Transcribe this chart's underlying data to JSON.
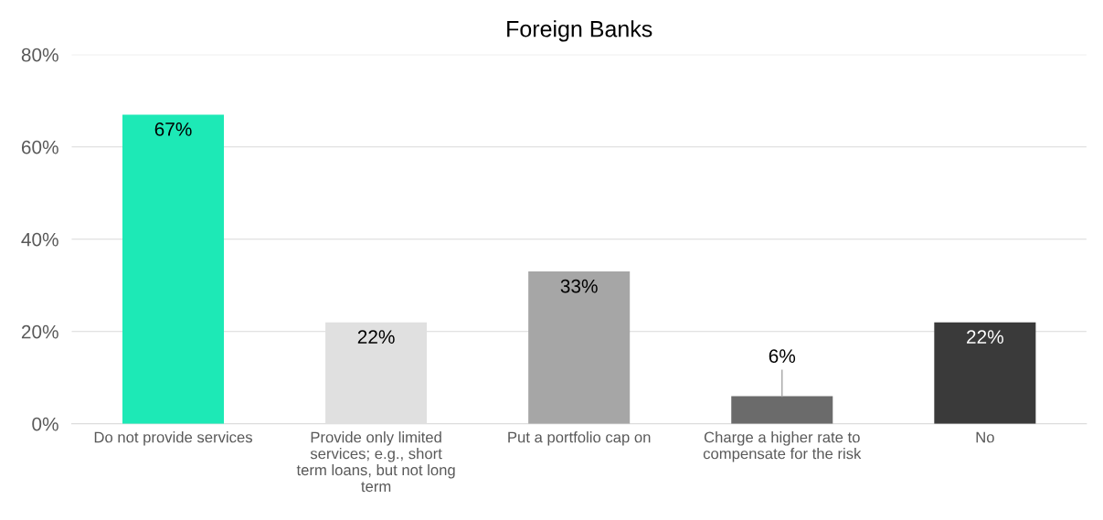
{
  "chart_data": {
    "type": "bar",
    "title": "Foreign Banks",
    "categories": [
      "Do not provide services",
      "Provide only limited services; e.g., short term loans, but not long term",
      "Put a portfolio cap on",
      "Charge a higher rate to compensate for the risk",
      "No"
    ],
    "values": [
      67,
      22,
      33,
      6,
      22
    ],
    "colors": [
      "#1de9b6",
      "#e0e0e0",
      "#a6a6a6",
      "#6b6b6b",
      "#3a3a3a"
    ],
    "value_labels": [
      "67%",
      "22%",
      "33%",
      "6%",
      "22%"
    ],
    "ylim": [
      0,
      80
    ],
    "yticks": [
      {
        "value": 0,
        "label": "0%"
      },
      {
        "value": 20,
        "label": "20%"
      },
      {
        "value": 40,
        "label": "40%"
      },
      {
        "value": 60,
        "label": "60%"
      },
      {
        "value": 80,
        "label": "80%"
      }
    ],
    "grid": "y"
  }
}
